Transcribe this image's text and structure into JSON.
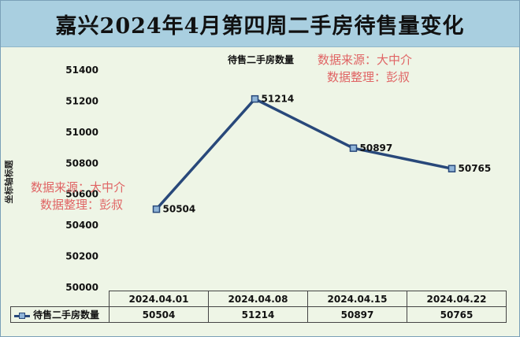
{
  "header": {
    "title": "嘉兴2024年4月第四周二手房待售量变化"
  },
  "chart_data": {
    "type": "line",
    "title": "待售二手房数量",
    "ylabel": "坐标轴标题",
    "xlabel": "",
    "categories": [
      "2024.04.01",
      "2024.04.08",
      "2024.04.15",
      "2024.04.22"
    ],
    "series": [
      {
        "name": "待售二手房数量",
        "values": [
          50504,
          51214,
          50897,
          50765
        ],
        "color": "#28487a"
      }
    ],
    "ylim": [
      50000,
      51400
    ],
    "yticks": [
      50000,
      50200,
      50400,
      50600,
      50800,
      51000,
      51200,
      51400
    ],
    "grid": false,
    "legend": "data-table",
    "data_labels": true
  },
  "watermarks": [
    {
      "line1": "数据来源：大中介",
      "line2": "数据整理：彭叔"
    },
    {
      "line1": "数据来源：大中介",
      "line2": "数据整理：彭叔"
    }
  ],
  "colors": {
    "banner": "#a9cfe0",
    "plot_background": "#eef5e6",
    "line": "#28487a",
    "watermark": "#e06464"
  }
}
